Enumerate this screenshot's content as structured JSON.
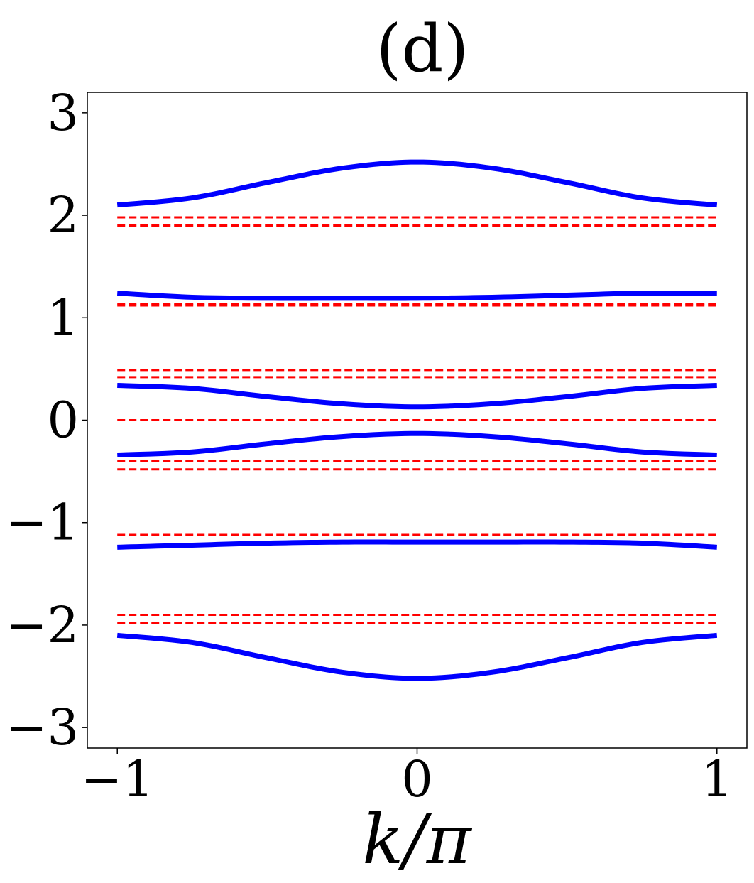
{
  "chart_data": {
    "type": "line",
    "title": "(d)",
    "xlabel": "k/π",
    "ylabel": "",
    "xlim": [
      -1.1,
      1.1
    ],
    "ylim": [
      -3.2,
      3.2
    ],
    "x_ticks": [
      -1,
      0,
      1
    ],
    "x_tick_labels": [
      "−1",
      "0",
      "1"
    ],
    "y_ticks": [
      3,
      2,
      1,
      0,
      -1,
      -2,
      -3
    ],
    "y_tick_labels": [
      "3",
      "2",
      "1",
      "0",
      "−1",
      "−2",
      "−3"
    ],
    "grid": false,
    "legend": "none",
    "colors": {
      "bands": "#0000ff",
      "levels": "#ff0000"
    },
    "series": [
      {
        "style": "solid",
        "color": "#0000ff",
        "x": [
          -1,
          -0.75,
          -0.5,
          -0.25,
          0,
          0.25,
          0.5,
          0.75,
          1
        ],
        "values": [
          2.1,
          2.17,
          2.32,
          2.46,
          2.52,
          2.46,
          2.32,
          2.17,
          2.1
        ]
      },
      {
        "style": "solid",
        "color": "#0000ff",
        "x": [
          -1,
          -0.75,
          -0.5,
          -0.25,
          0,
          0.25,
          0.5,
          0.75,
          1
        ],
        "values": [
          1.24,
          1.2,
          1.19,
          1.19,
          1.19,
          1.2,
          1.22,
          1.24,
          1.24
        ]
      },
      {
        "style": "solid",
        "color": "#0000ff",
        "x": [
          -1,
          -0.75,
          -0.5,
          -0.25,
          0,
          0.25,
          0.5,
          0.75,
          1
        ],
        "values": [
          0.34,
          0.31,
          0.23,
          0.16,
          0.13,
          0.16,
          0.23,
          0.31,
          0.34
        ]
      },
      {
        "style": "solid",
        "color": "#0000ff",
        "x": [
          -1,
          -0.75,
          -0.5,
          -0.25,
          0,
          0.25,
          0.5,
          0.75,
          1
        ],
        "values": [
          -0.34,
          -0.31,
          -0.23,
          -0.16,
          -0.13,
          -0.16,
          -0.23,
          -0.31,
          -0.34
        ]
      },
      {
        "style": "solid",
        "color": "#0000ff",
        "x": [
          -1,
          -0.75,
          -0.5,
          -0.25,
          0,
          0.25,
          0.5,
          0.75,
          1
        ],
        "values": [
          -1.24,
          -1.22,
          -1.2,
          -1.19,
          -1.19,
          -1.19,
          -1.19,
          -1.2,
          -1.24
        ]
      },
      {
        "style": "solid",
        "color": "#0000ff",
        "x": [
          -1,
          -0.75,
          -0.5,
          -0.25,
          0,
          0.25,
          0.5,
          0.75,
          1
        ],
        "values": [
          -2.1,
          -2.17,
          -2.32,
          -2.46,
          -2.52,
          -2.46,
          -2.32,
          -2.17,
          -2.1
        ]
      }
    ],
    "dashed_levels": [
      1.98,
      1.9,
      1.13,
      1.12,
      0.49,
      0.42,
      0.0,
      -0.4,
      -0.48,
      -1.12,
      -1.9,
      -1.98
    ]
  }
}
